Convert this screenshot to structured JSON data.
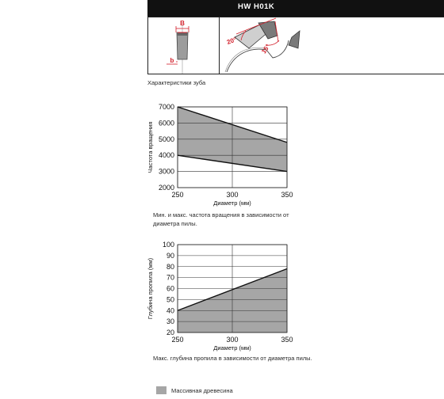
{
  "header": {
    "code": "HW H01K"
  },
  "tooth": {
    "caption": "Характеристики зуба",
    "label_B": "B",
    "label_b": "b",
    "angle_top": "20°",
    "angle_side": "15°"
  },
  "chart_data": [
    {
      "type": "area",
      "title": "",
      "xlabel": "Диаметр (мм)",
      "ylabel": "Частота вращения",
      "caption": "Мин. и макс. частота вращения в зависимости от диаметра пилы.",
      "x": [
        250,
        350
      ],
      "series": [
        {
          "values": [
            7000,
            4800
          ]
        },
        {
          "values": [
            4000,
            3000
          ]
        }
      ],
      "xlim": [
        250,
        350
      ],
      "ylim": [
        2000,
        7000
      ],
      "xticks": [
        250,
        300,
        350
      ],
      "yticks": [
        2000,
        3000,
        4000,
        5000,
        6000,
        7000
      ],
      "grid": true,
      "fill_color": "#a6a6a6"
    },
    {
      "type": "area",
      "title": "",
      "xlabel": "Диаметр (мм)",
      "ylabel": "Глубина пропила (мм)",
      "caption": "Макс. глубина пропила в зависимости от диаметра пилы.",
      "x": [
        250,
        350
      ],
      "series": [
        {
          "values": [
            40,
            78
          ]
        }
      ],
      "fill_to": 20,
      "xlim": [
        250,
        350
      ],
      "ylim": [
        20,
        100
      ],
      "xticks": [
        250,
        300,
        350
      ],
      "yticks": [
        20,
        30,
        40,
        50,
        60,
        70,
        80,
        90,
        100
      ],
      "grid": true,
      "fill_color": "#a6a6a6"
    }
  ],
  "legend": {
    "label": "Массивная древесина",
    "color": "#a6a6a6"
  }
}
